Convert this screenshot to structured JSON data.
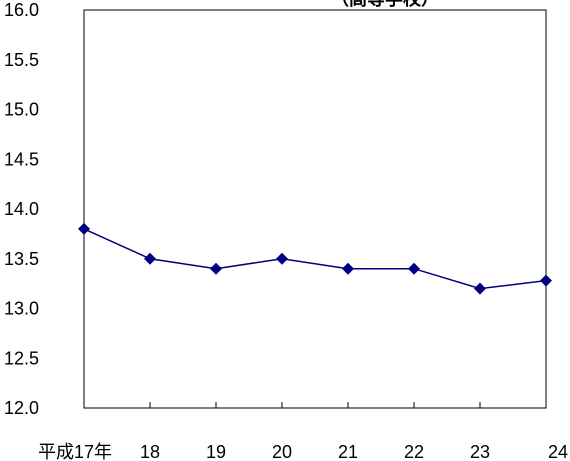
{
  "chart_data": {
    "type": "line",
    "title": "（高等学校）",
    "xlabel": "",
    "ylabel": "",
    "categories": [
      "平成17年",
      "18",
      "19",
      "20",
      "21",
      "22",
      "23",
      "24"
    ],
    "series": [
      {
        "values": [
          13.8,
          13.5,
          13.4,
          13.5,
          13.4,
          13.4,
          13.2,
          13.28
        ]
      }
    ],
    "ylim": [
      12.0,
      16.0
    ],
    "yticks": [
      "16.0",
      "15.5",
      "15.0",
      "14.5",
      "14.0",
      "13.5",
      "13.0",
      "12.5",
      "12.0"
    ],
    "grid": false,
    "legend": "none",
    "colors": {
      "line": "#000080",
      "marker": "#000080",
      "axis": "#000000"
    },
    "marker": "diamond"
  }
}
